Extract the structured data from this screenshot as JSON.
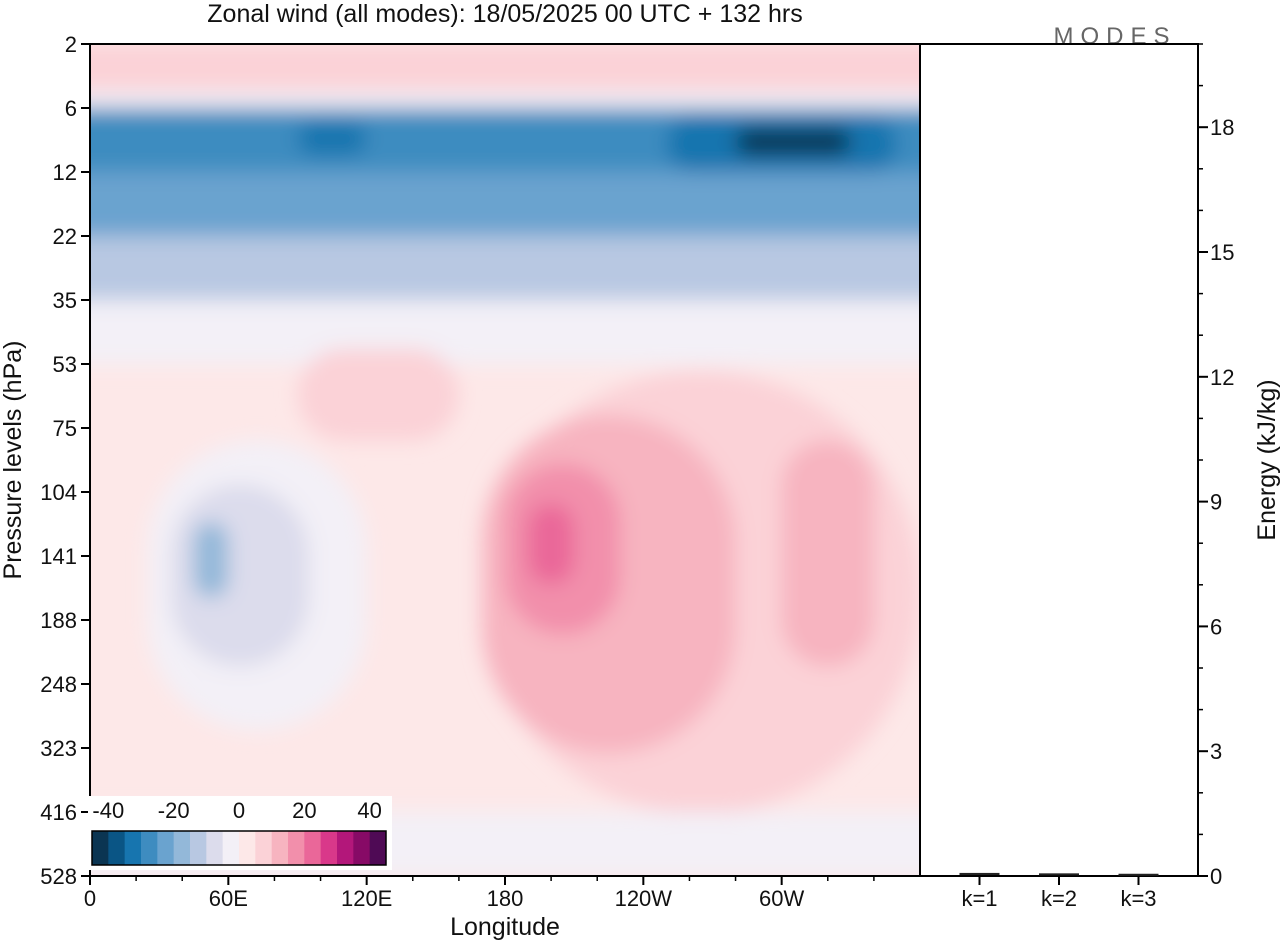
{
  "chart_data": [
    {
      "type": "heatmap",
      "title": "Zonal wind (all modes):  18/05/2025  00 UTC  + 132 hrs",
      "logo": "MODES",
      "xlabel": "Longitude",
      "ylabel": "Pressure levels (hPa)",
      "x_ticks": [
        "0",
        "60E",
        "120E",
        "180",
        "120W",
        "60W"
      ],
      "x_tick_degrees": [
        0,
        60,
        120,
        180,
        240,
        300
      ],
      "xlim": [
        0,
        360
      ],
      "y_ticks": [
        "2",
        "6",
        "12",
        "22",
        "35",
        "53",
        "75",
        "104",
        "141",
        "188",
        "248",
        "323",
        "416",
        "528"
      ],
      "ylim": [
        2,
        528
      ],
      "colorbar": {
        "ticks": [
          "-40",
          "-20",
          "0",
          "20",
          "40"
        ],
        "min": -45,
        "max": 45,
        "step": 5,
        "colors": [
          "#0b3552",
          "#0a5585",
          "#1775af",
          "#3e8cc0",
          "#6aa3cf",
          "#93b8d9",
          "#b8c8e2",
          "#dcdcec",
          "#f3f0f7",
          "#fde8e8",
          "#fbd2d7",
          "#f7b4c0",
          "#f28fab",
          "#ea6799",
          "#d9388a",
          "#b3177a",
          "#870a66",
          "#4f0a55"
        ]
      },
      "regions": [
        {
          "lon": [
            0,
            360
          ],
          "lev": [
            2,
            5
          ],
          "value": 8
        },
        {
          "lon": [
            0,
            360
          ],
          "lev": [
            4.5,
            6
          ],
          "value": -5
        },
        {
          "lon": [
            0,
            360
          ],
          "lev": [
            6,
            12
          ],
          "value": -27
        },
        {
          "lon": [
            0,
            360
          ],
          "lev": [
            12,
            22
          ],
          "value": -22
        },
        {
          "lon": [
            250,
            350
          ],
          "lev": [
            6.5,
            12
          ],
          "value": -35
        },
        {
          "lon": [
            280,
            330
          ],
          "lev": [
            7.5,
            10
          ],
          "value": -43
        },
        {
          "lon": [
            90,
            120
          ],
          "lev": [
            7,
            10
          ],
          "value": -33
        },
        {
          "lon": [
            0,
            360
          ],
          "lev": [
            22,
            35
          ],
          "value": -12
        },
        {
          "lon": [
            0,
            360
          ],
          "lev": [
            35,
            53
          ],
          "value": -2
        },
        {
          "lon": [
            90,
            160
          ],
          "lev": [
            48,
            80
          ],
          "value": 6
        },
        {
          "lon": [
            170,
            360
          ],
          "lev": [
            55,
            420
          ],
          "value": 6
        },
        {
          "lon": [
            170,
            280
          ],
          "lev": [
            70,
            330
          ],
          "value": 12
        },
        {
          "lon": [
            300,
            340
          ],
          "lev": [
            80,
            230
          ],
          "value": 14
        },
        {
          "lon": [
            180,
            230
          ],
          "lev": [
            90,
            200
          ],
          "value": 18
        },
        {
          "lon": [
            190,
            210
          ],
          "lev": [
            110,
            160
          ],
          "value": 24
        },
        {
          "lon": [
            25,
            120
          ],
          "lev": [
            80,
            300
          ],
          "value": -4
        },
        {
          "lon": [
            35,
            95
          ],
          "lev": [
            100,
            230
          ],
          "value": -9
        },
        {
          "lon": [
            45,
            60
          ],
          "lev": [
            120,
            170
          ],
          "value": -16
        },
        {
          "lon": [
            0,
            360
          ],
          "lev": [
            416,
            528
          ],
          "value": -1
        }
      ]
    },
    {
      "type": "bar",
      "ylabel": "Energy (kJ/kg)",
      "categories": [
        "k=1",
        "k=2",
        "k=3"
      ],
      "values": [
        0.05,
        0.04,
        0.03
      ],
      "ylim": [
        0,
        20
      ],
      "y_ticks": [
        "0",
        "3",
        "6",
        "9",
        "12",
        "15",
        "18"
      ],
      "y_tick_values": [
        0,
        3,
        6,
        9,
        12,
        15,
        18
      ]
    }
  ]
}
